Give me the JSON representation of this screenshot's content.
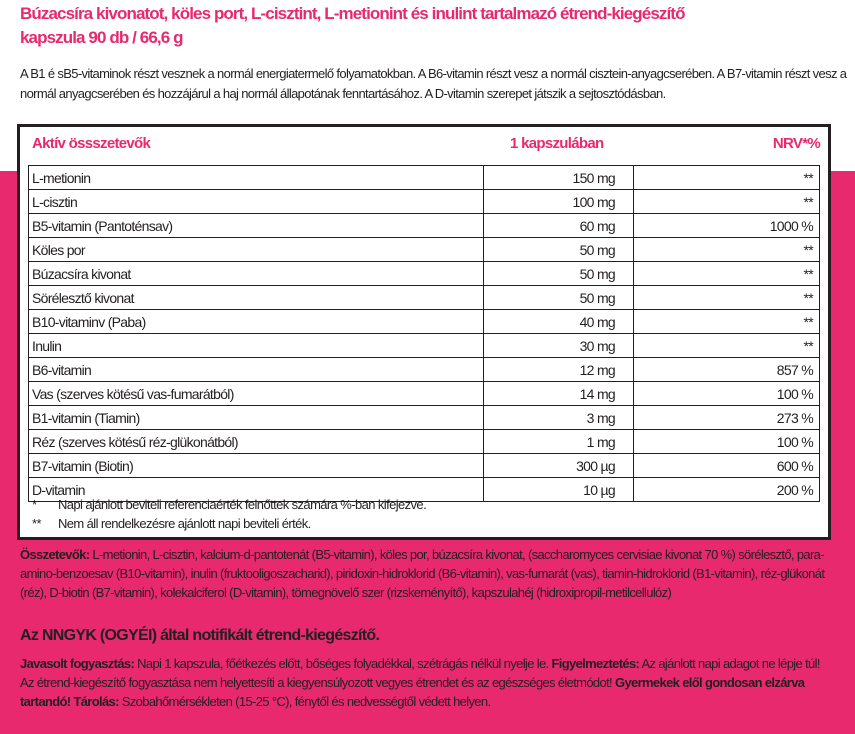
{
  "title": {
    "line1": "Búzacsíra kivonatot, köles port, L-cisztint, L-metionint és inulint tartalmazó étrend-kiegészítő",
    "line2": "kapszula 90 db / 66,6 g"
  },
  "intro": "A B1 é sB5-vitaminok részt vesznek a normál energiatermelő folyamatokban. A B6-vitamin részt vesz a normál cisztein-anyagcserében. A B7-vitamin részt vesz a normál anyagcserében és hozzájárul a haj normál állapotának fenntartásához. A D-vitamin szerepet játszik a sejtosztódásban.",
  "table": {
    "headers": [
      "Aktív össszetevők",
      "1 kapszulában",
      "NRV*%"
    ],
    "rows": [
      [
        "L-metionin",
        "150 mg",
        "**"
      ],
      [
        "L-cisztin",
        "100 mg",
        "**"
      ],
      [
        "B5-vitamin (Pantoténsav)",
        "60 mg",
        "1000 %"
      ],
      [
        "Köles por",
        "50 mg",
        "**"
      ],
      [
        "Búzacsíra kivonat",
        "50 mg",
        "**"
      ],
      [
        "Sörélesztő kivonat",
        "50 mg",
        "**"
      ],
      [
        "B10-vitaminv (Paba)",
        "40 mg",
        "**"
      ],
      [
        "Inulin",
        "30 mg",
        "**"
      ],
      [
        "B6-vitamin",
        "12 mg",
        "857 %"
      ],
      [
        "Vas (szerves kötésű vas-fumarátból)",
        "14 mg",
        "100 %"
      ],
      [
        "B1-vitamin (Tiamin)",
        "3 mg",
        "273 %"
      ],
      [
        "Réz (szerves kötésű réz-glükonátból)",
        "1 mg",
        "100 %"
      ],
      [
        "B7-vitamin (Biotin)",
        "300 µg",
        "600 %"
      ],
      [
        "D-vitamin",
        "10 µg",
        "200 %"
      ]
    ],
    "footnotes": [
      {
        "mark": "*",
        "text": "Napi ajánlott beviteli referenciaérték felnőttek számára %-ban kifejezve."
      },
      {
        "mark": "**",
        "text": "Nem áll rendelkezésre ajánlott napi beviteli érték."
      }
    ]
  },
  "ingredients": {
    "label": "Összetevők:",
    "text": " L-metionin, L-cisztin, kalcium-d-pantotenát (B5-vitamin), köles por, búzacsíra kivonat, (saccharomyces cervisiae kivonat 70 %) sörélesztő, para-amino-benzoesav (B10-vitamin), inulin (fruktooligoszacharid), piridoxin-hidroklorid (B6-vitamin), vas-fumarát (vas), tiamin-hidroklorid (B1-vitamin), réz-glükonát (réz), D-biotin (B7-vitamin), kolekalciferol (D-vitamin), tömegnövelő szer (rizskeményítő), kapszulahéj (hidroxipropil-metilcellulóz)"
  },
  "notified": "Az NNGYK (OGYÉI) által notifikált étrend-kiegészítő.",
  "usage": {
    "label1": "Javasolt fogyasztás:",
    "text1": " Napi 1 kapszula, főétkezés előtt, bőséges folyadékkal, szétrágás nélkül nyelje le. ",
    "label2": "Figyelmeztetés:",
    "text2": " Az ajánlott napi adagot ne lépje túl! Az étrend-kiegészítő fogyasztása nem helyettesíti a kiegyensúlyozott vegyes étrendet és az egészséges életmódot! ",
    "label3": "Gyermekek elől gondosan elzárva tartandó! Tárolás:",
    "text3": " Szobahőmérsékleten (15-25 °C), fénytől és nedvességtől védett helyen."
  }
}
